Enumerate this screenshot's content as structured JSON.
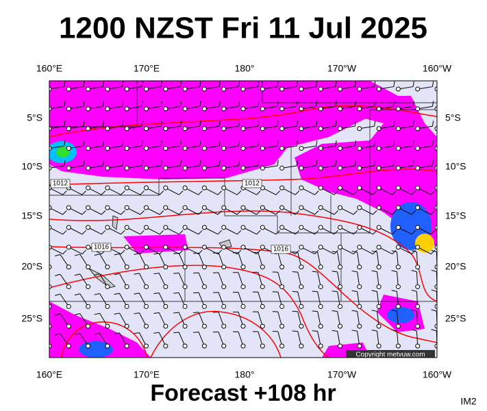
{
  "title": "1200 NZST Fri 11 Jul 2025",
  "top_labels": [
    "160°E",
    "170°E",
    "180°",
    "170°W",
    "160°W"
  ],
  "bottom_labels": [
    "160°E",
    "170°E",
    "180°",
    "170°W",
    "160°W"
  ],
  "left_labels": [
    "5°S",
    "10°S",
    "15°S",
    "20°S",
    "25°S"
  ],
  "right_labels": [
    "5°S",
    "10°S",
    "15°S",
    "20°S",
    "25°S"
  ],
  "isobar_labels": [
    "1012",
    "1012",
    "1016",
    "1016"
  ],
  "copyright": "Copyright metvuw.com",
  "footer": "Forecast +108 hr",
  "code": "IM2"
}
